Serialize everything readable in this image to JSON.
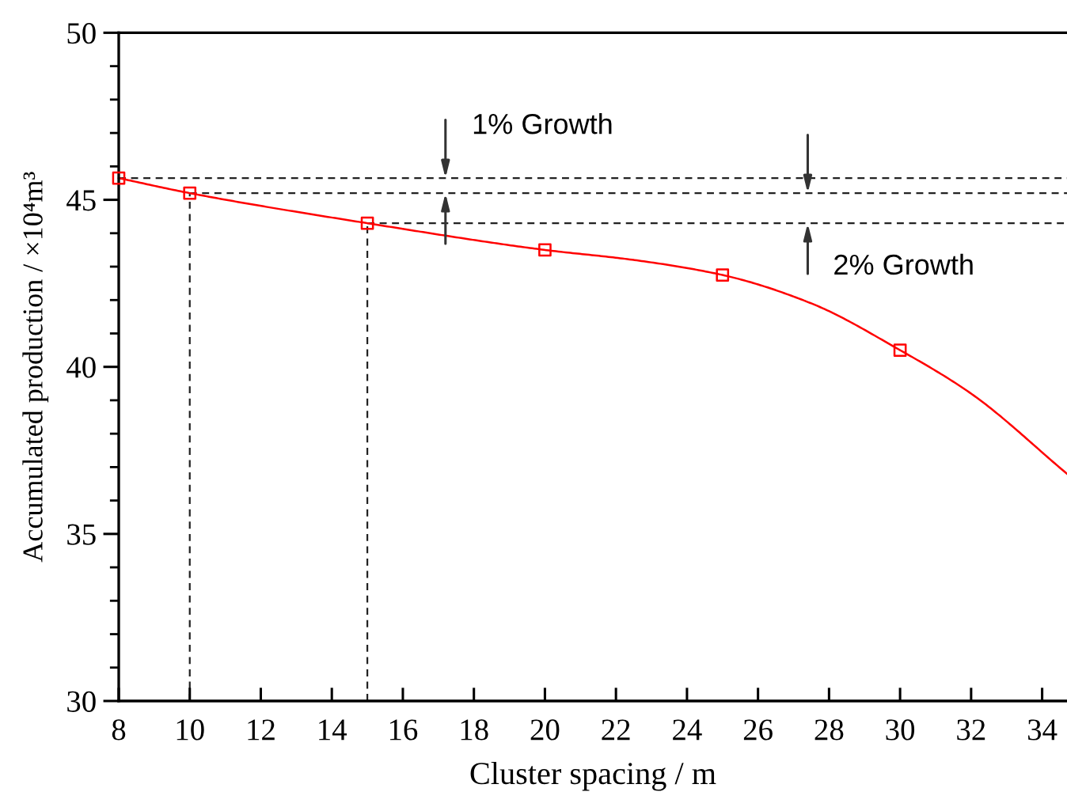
{
  "chart_data": {
    "type": "line",
    "xlabel": "Cluster spacing / m",
    "ylabel": "Accumulated production / ×10⁴m³",
    "xlim": [
      8,
      34.7
    ],
    "xticks": [
      8,
      10,
      12,
      14,
      16,
      18,
      20,
      22,
      24,
      26,
      28,
      30,
      32,
      34
    ],
    "ylim": [
      30,
      50
    ],
    "yticks": [
      30,
      {
        "value": 31,
        "label": null
      },
      {
        "value": 32,
        "label": null
      },
      {
        "value": 33,
        "label": null
      },
      {
        "value": 34,
        "label": null
      },
      35,
      {
        "value": 36,
        "label": null
      },
      {
        "value": 37,
        "label": null
      },
      {
        "value": 38,
        "label": null
      },
      {
        "value": 39,
        "label": null
      },
      40,
      {
        "value": 41,
        "label": null
      },
      {
        "value": 42,
        "label": null
      },
      {
        "value": 43,
        "label": null
      },
      {
        "value": 44,
        "label": null
      },
      45,
      {
        "value": 46,
        "label": null
      },
      {
        "value": 47,
        "label": null
      },
      {
        "value": 48,
        "label": null
      },
      {
        "value": 49,
        "label": null
      },
      50
    ],
    "series": [
      {
        "color": "#ff0000",
        "marker": "none",
        "line_style": "solid",
        "x": [
          8,
          10,
          15,
          20,
          22.5,
          25,
          27.5,
          30,
          32,
          34.7
        ],
        "values": [
          45.65,
          45.2,
          44.3,
          43.5,
          43.2,
          42.75,
          41.9,
          40.5,
          39.2,
          36.8
        ]
      },
      {
        "type": "scatter",
        "color": "#ff0000",
        "marker": "square",
        "x": [
          8,
          10,
          15,
          20,
          25,
          30
        ],
        "values": [
          45.65,
          45.2,
          44.3,
          43.5,
          42.75,
          40.5
        ]
      },
      {
        "color": "#222222",
        "marker": "none",
        "line_style": "dashed",
        "x": [
          8,
          34.7
        ],
        "values": [
          45.65,
          45.65
        ]
      },
      {
        "color": "#222222",
        "marker": "none",
        "line_style": "dashed",
        "x": [
          10,
          34.7
        ],
        "values": [
          45.2,
          45.2
        ]
      },
      {
        "color": "#222222",
        "marker": "none",
        "line_style": "dashed",
        "x": [
          15,
          34.7
        ],
        "values": [
          44.3,
          44.3
        ]
      },
      {
        "color": "#222222",
        "marker": "none",
        "line_style": "dashed",
        "x": [
          10,
          10
        ],
        "values": [
          30,
          45.2
        ]
      },
      {
        "color": "#222222",
        "marker": "none",
        "line_style": "dashed",
        "x": [
          15,
          15
        ],
        "values": [
          30,
          44.3
        ]
      }
    ],
    "annotations": [
      {
        "text": "1% Growth",
        "x": 17.2,
        "y": 45.65
      },
      {
        "text": "2% Growth",
        "x": 27.4,
        "y": 44.3
      }
    ]
  }
}
